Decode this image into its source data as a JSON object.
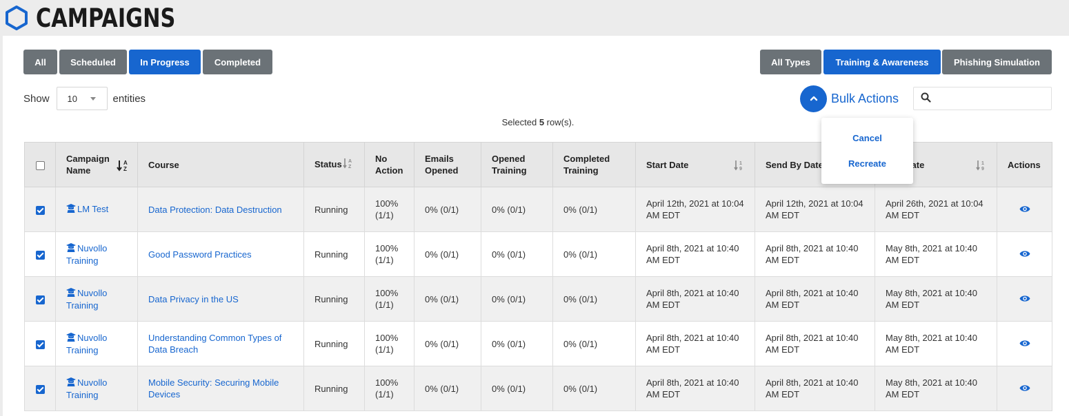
{
  "header": {
    "title": "CAMPAIGNS",
    "icon": "hexagon-icon"
  },
  "status_filters": [
    {
      "label": "All",
      "active": false
    },
    {
      "label": "Scheduled",
      "active": false
    },
    {
      "label": "In Progress",
      "active": true
    },
    {
      "label": "Completed",
      "active": false
    }
  ],
  "type_filters": [
    {
      "label": "All Types",
      "active": false
    },
    {
      "label": "Training & Awareness",
      "active": true
    },
    {
      "label": "Phishing Simulation",
      "active": false
    }
  ],
  "page_size": {
    "prefix": "Show",
    "value": "10",
    "suffix": "entities"
  },
  "bulk_actions": {
    "label": "Bulk Actions",
    "menu": [
      "Cancel",
      "Recreate"
    ]
  },
  "search": {
    "placeholder": ""
  },
  "selection": {
    "prefix": "Selected",
    "count": "5",
    "suffix": "row(s)."
  },
  "table": {
    "headers": {
      "campaign_name": "Campaign Name",
      "course": "Course",
      "status": "Status",
      "no_action": "No Action",
      "emails_opened": "Emails Opened",
      "opened_training": "Opened Training",
      "completed_training": "Completed Training",
      "start_date": "Start Date",
      "send_by_date": "Send By Date",
      "end_date": "End Date",
      "actions": "Actions"
    },
    "rows": [
      {
        "checked": true,
        "campaign": "LM Test",
        "course": "Data Protection: Data Destruction",
        "status": "Running",
        "no_action": "100% (1/1)",
        "emails_opened": "0% (0/1)",
        "opened_training": "0% (0/1)",
        "completed_training": "0% (0/1)",
        "start_date": "April 12th, 2021 at 10:04 AM EDT",
        "send_by_date": "April 12th, 2021 at 10:04 AM EDT",
        "end_date": "April 26th, 2021 at 10:04 AM EDT"
      },
      {
        "checked": true,
        "campaign": "Nuvollo Training",
        "course": "Good Password Practices",
        "status": "Running",
        "no_action": "100% (1/1)",
        "emails_opened": "0% (0/1)",
        "opened_training": "0% (0/1)",
        "completed_training": "0% (0/1)",
        "start_date": "April 8th, 2021 at 10:40 AM EDT",
        "send_by_date": "April 8th, 2021 at 10:40 AM EDT",
        "end_date": "May 8th, 2021 at 10:40 AM EDT"
      },
      {
        "checked": true,
        "campaign": "Nuvollo Training",
        "course": "Data Privacy in the US",
        "status": "Running",
        "no_action": "100% (1/1)",
        "emails_opened": "0% (0/1)",
        "opened_training": "0% (0/1)",
        "completed_training": "0% (0/1)",
        "start_date": "April 8th, 2021 at 10:40 AM EDT",
        "send_by_date": "April 8th, 2021 at 10:40 AM EDT",
        "end_date": "May 8th, 2021 at 10:40 AM EDT"
      },
      {
        "checked": true,
        "campaign": "Nuvollo Training",
        "course": "Understanding Common Types of Data Breach",
        "status": "Running",
        "no_action": "100% (1/1)",
        "emails_opened": "0% (0/1)",
        "opened_training": "0% (0/1)",
        "completed_training": "0% (0/1)",
        "start_date": "April 8th, 2021 at 10:40 AM EDT",
        "send_by_date": "April 8th, 2021 at 10:40 AM EDT",
        "end_date": "May 8th, 2021 at 10:40 AM EDT"
      },
      {
        "checked": true,
        "campaign": "Nuvollo Training",
        "course": "Mobile Security: Securing Mobile Devices",
        "status": "Running",
        "no_action": "100% (1/1)",
        "emails_opened": "0% (0/1)",
        "opened_training": "0% (0/1)",
        "completed_training": "0% (0/1)",
        "start_date": "April 8th, 2021 at 10:40 AM EDT",
        "send_by_date": "April 8th, 2021 at 10:40 AM EDT",
        "end_date": "May 8th, 2021 at 10:40 AM EDT"
      }
    ]
  },
  "colors": {
    "accent": "#1766cf",
    "button_grey": "#6b7277"
  }
}
